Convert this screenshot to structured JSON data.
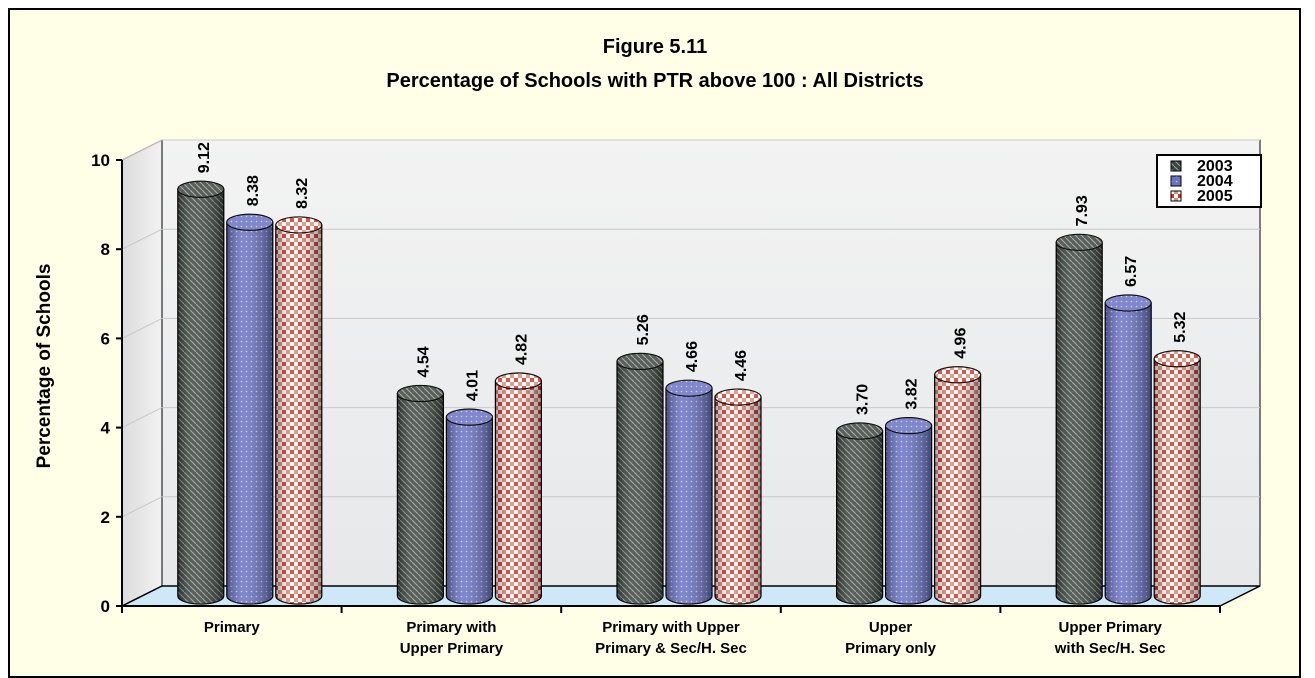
{
  "chart_data": {
    "type": "bar",
    "title": "Figure 5.11",
    "subtitle": "Percentage of Schools with PTR above 100 :  All Districts",
    "ylabel": "Percentage of Schools",
    "xlabel": "",
    "ylim": [
      0,
      10
    ],
    "yticks": [
      "0",
      "2",
      "4",
      "6",
      "8",
      "10"
    ],
    "categories": [
      [
        "Primary"
      ],
      [
        "Primary with",
        "Upper Primary"
      ],
      [
        "Primary with Upper",
        "Primary & Sec/H. Sec"
      ],
      [
        "Upper",
        "Primary only"
      ],
      [
        "Upper Primary",
        "with Sec/H. Sec"
      ]
    ],
    "series": [
      {
        "name": "2003",
        "values": [
          9.12,
          4.54,
          5.26,
          3.7,
          7.93
        ],
        "labels": [
          "9.12",
          "4.54",
          "5.26",
          "3.70",
          "7.93"
        ]
      },
      {
        "name": "2004",
        "values": [
          8.38,
          4.01,
          4.66,
          3.82,
          6.57
        ],
        "labels": [
          "8.38",
          "4.01",
          "4.66",
          "3.82",
          "6.57"
        ]
      },
      {
        "name": "2005",
        "values": [
          8.32,
          4.82,
          4.46,
          4.96,
          5.32
        ],
        "labels": [
          "8.32",
          "4.82",
          "4.46",
          "4.96",
          "5.32"
        ]
      }
    ],
    "grid": true,
    "legend_position": "top-right",
    "colors": {
      "2003": "#3c4540",
      "2004": "#6a72c4",
      "2005": "#d84a3a",
      "floor": "#cfe8f8",
      "wall": "#eef0f0",
      "frame": "#ffffe8"
    }
  }
}
